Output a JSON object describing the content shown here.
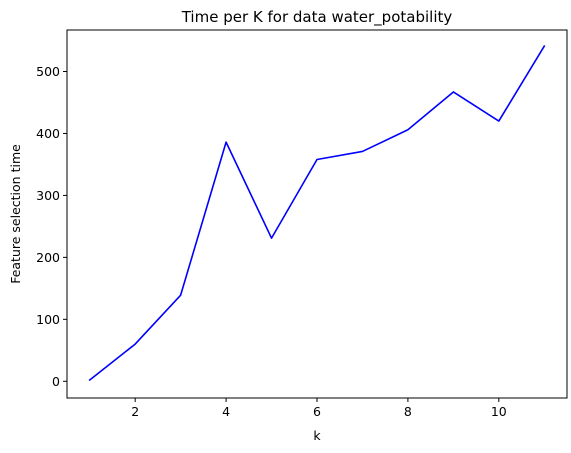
{
  "chart_data": {
    "type": "line",
    "title": "Time per K for data water_potability",
    "xlabel": "k",
    "ylabel": "Feature selection time",
    "xlim": [
      0.5,
      11.5
    ],
    "ylim": [
      -27,
      567
    ],
    "xticks": [
      2,
      4,
      6,
      8,
      10
    ],
    "yticks": [
      0,
      100,
      200,
      300,
      400,
      500
    ],
    "grid": false,
    "series": [
      {
        "color": "#0000ff",
        "x": [
          1,
          2,
          3,
          4,
          5,
          6,
          7,
          8,
          9,
          10,
          11
        ],
        "y": [
          2,
          60,
          139,
          386,
          231,
          358,
          371,
          406,
          467,
          420,
          541
        ]
      }
    ]
  }
}
